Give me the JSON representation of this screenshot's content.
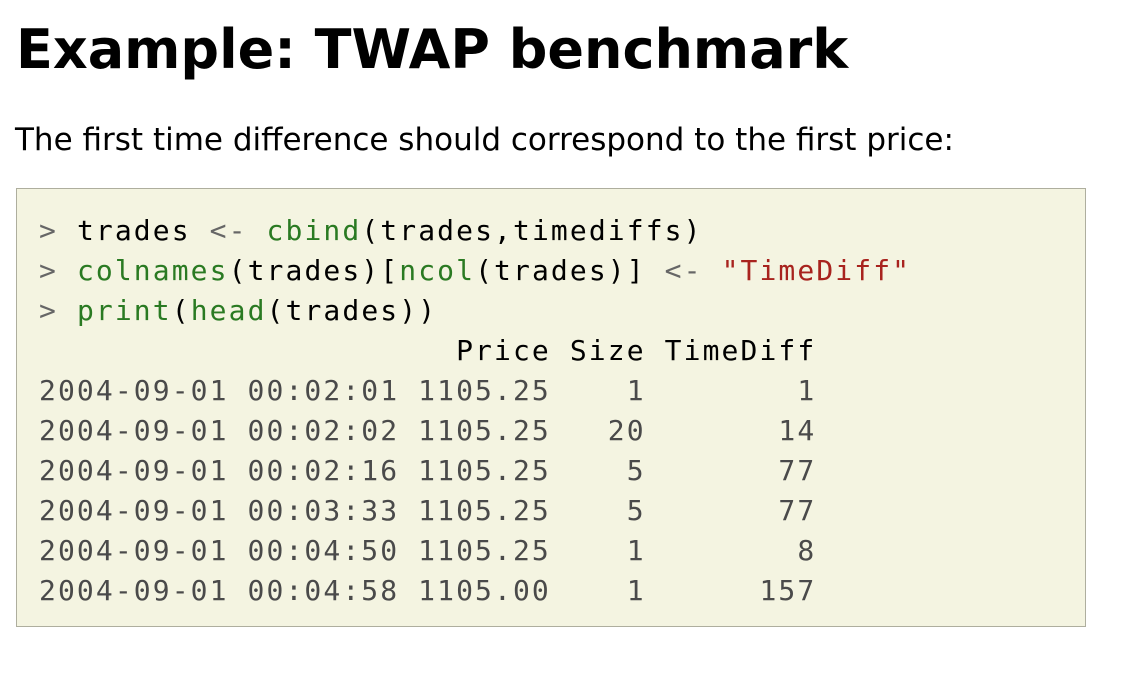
{
  "slide": {
    "title": "Example: TWAP benchmark",
    "intro": "The first time difference should correspond to the first price:"
  },
  "code": {
    "prompt": ">",
    "assign_op": "<-",
    "line1": {
      "var": "trades",
      "fn": "cbind",
      "args": "(trades,timediffs)"
    },
    "line2": {
      "fn1": "colnames",
      "mid1": "(trades)[",
      "fn2": "ncol",
      "mid2": "(trades)]",
      "string": "\"TimeDiff\""
    },
    "line3": {
      "fn1": "print",
      "paren": "(",
      "fn2": "head",
      "rest": "(trades))"
    },
    "columns": [
      "Price",
      "Size",
      "TimeDiff"
    ],
    "rows": [
      {
        "timestamp": "2004-09-01 00:02:01",
        "price": "1105.25",
        "size": "1",
        "timediff": "1"
      },
      {
        "timestamp": "2004-09-01 00:02:02",
        "price": "1105.25",
        "size": "20",
        "timediff": "14"
      },
      {
        "timestamp": "2004-09-01 00:02:16",
        "price": "1105.25",
        "size": "5",
        "timediff": "77"
      },
      {
        "timestamp": "2004-09-01 00:03:33",
        "price": "1105.25",
        "size": "5",
        "timediff": "77"
      },
      {
        "timestamp": "2004-09-01 00:04:50",
        "price": "1105.25",
        "size": "1",
        "timediff": "8"
      },
      {
        "timestamp": "2004-09-01 00:04:58",
        "price": "1105.00",
        "size": "1",
        "timediff": "157"
      }
    ]
  }
}
